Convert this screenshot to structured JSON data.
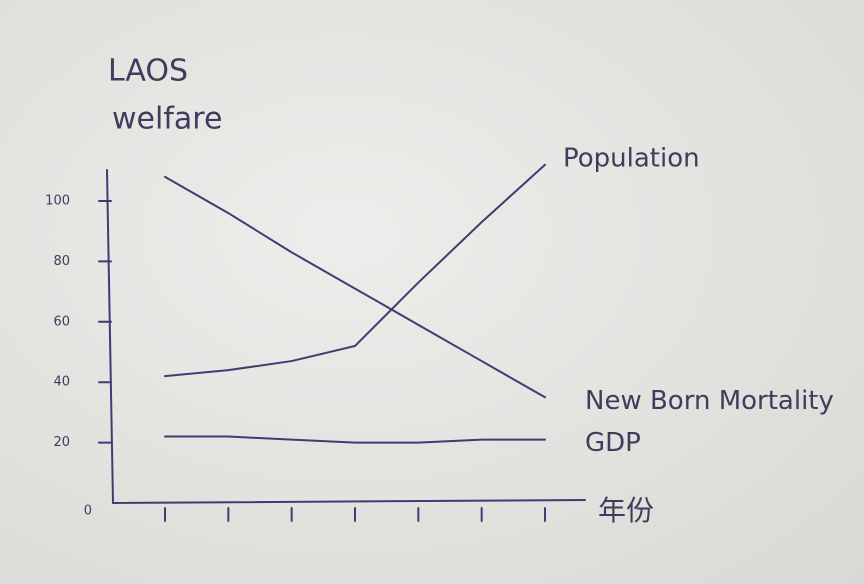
{
  "chart_data": {
    "type": "line",
    "title": [
      "LAOS",
      "welfare"
    ],
    "x_label": "年份",
    "categories": [
      null,
      null,
      null,
      null,
      null,
      null,
      null
    ],
    "series": [
      {
        "name": "Population",
        "color": "#3d3d72",
        "values": [
          42,
          44,
          47,
          52,
          73,
          93,
          112
        ]
      },
      {
        "name": "New Born Mortality",
        "color": "#3d3d72",
        "values": [
          108,
          96,
          83,
          71,
          59,
          47,
          35
        ]
      },
      {
        "name": "GDP",
        "color": "#3d3d72",
        "values": [
          22,
          22,
          21,
          20,
          20,
          21,
          21
        ]
      }
    ],
    "ylim": [
      0,
      115
    ],
    "yticks": [
      0,
      20,
      40,
      60,
      80,
      100
    ],
    "grid": false
  }
}
